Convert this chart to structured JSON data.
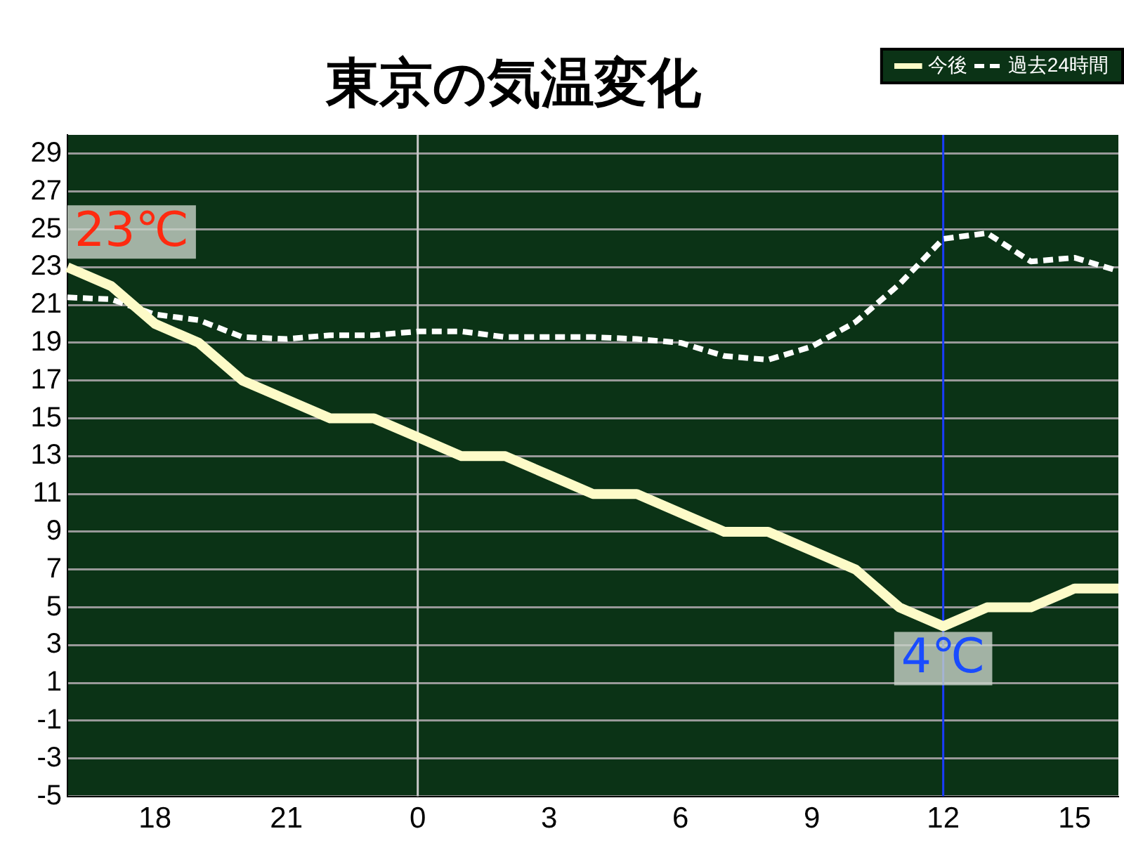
{
  "chart_data": {
    "type": "line",
    "title": "東京の気温変化",
    "categories": [
      null,
      null,
      "18",
      null,
      null,
      "21",
      null,
      null,
      "0",
      null,
      null,
      "3",
      null,
      null,
      "6",
      null,
      null,
      "9",
      null,
      null,
      "12",
      null,
      null,
      "15",
      null
    ],
    "series": [
      {
        "name": "今後",
        "color": "#fdfbc8",
        "line_style": "solid",
        "values": [
          23,
          22,
          20,
          19,
          17,
          16,
          15,
          15,
          14,
          13,
          13,
          12,
          11,
          11,
          10,
          9,
          9,
          8,
          7,
          5,
          4,
          5,
          5,
          6,
          6
        ]
      },
      {
        "name": "過去24時間",
        "color": "#ffffff",
        "line_style": "dashed",
        "values": [
          21.4,
          21.3,
          20.5,
          20.2,
          19.3,
          19.2,
          19.4,
          19.4,
          19.6,
          19.6,
          19.3,
          19.3,
          19.3,
          19.2,
          19.0,
          18.3,
          18.1,
          18.8,
          20.1,
          22.1,
          24.5,
          24.8,
          23.3,
          23.5,
          22.8
        ]
      }
    ],
    "ylim": [
      -5,
      30
    ],
    "yticks": [
      -5,
      -3,
      -1,
      1,
      3,
      5,
      7,
      9,
      11,
      13,
      15,
      17,
      19,
      21,
      23,
      25,
      27,
      29
    ],
    "grid": "y",
    "legend": "top right",
    "marker": "none",
    "ref_lines": [
      {
        "axis": "x",
        "value": "0",
        "color": "#c8c8c8"
      },
      {
        "axis": "x",
        "value": "12",
        "color": "#1a3cff"
      }
    ],
    "annotations": [
      "23℃",
      {
        "text": "4℃",
        "x": "12",
        "y": 4
      }
    ]
  }
}
